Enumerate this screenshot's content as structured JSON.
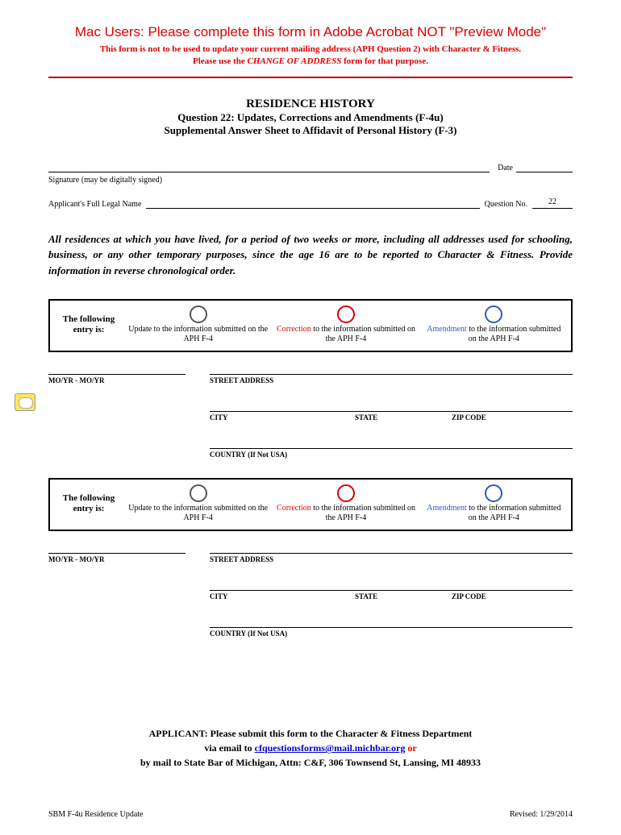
{
  "header": {
    "mac_warning": "Mac Users: Please complete this form in Adobe Acrobat NOT \"Preview Mode\"",
    "sub_warning_1": "This form is not to be used to update your current mailing address (APH Question 2) with Character & Fitness.",
    "sub_warning_2a": "Please use the ",
    "sub_warning_2b": "CHANGE OF ADDRESS",
    "sub_warning_2c": " form for that purpose."
  },
  "title": {
    "main": "RESIDENCE HISTORY",
    "line2": "Question 22: Updates, Corrections and Amendments (F-4u)",
    "line3": "Supplemental Answer Sheet to Affidavit of Personal History (F-3)"
  },
  "fields": {
    "signature_label": "Signature (may be digitally signed)",
    "date_label": "Date",
    "name_label": "Applicant's Full Legal Name",
    "question_label": "Question No.",
    "question_value": "22"
  },
  "instructions": "All residences at which you have lived, for a period of two weeks or more, including all addresses used for schooling, business, or any other temporary purposes, since the age 16 are to be reported to Character & Fitness.  Provide information in reverse chronological order.",
  "entry": {
    "label_1": "The following",
    "label_2": "entry is:",
    "update_word": "Update",
    "update_rest": " to the information submitted on the APH F-4",
    "correction_word": "Correction",
    "correction_rest": " to the information submitted on the APH F-4",
    "amendment_word": "Amendment",
    "amendment_rest": " to the information submitted on the APH F-4"
  },
  "addr": {
    "moyr": "MO/YR - MO/YR",
    "street": "STREET ADDRESS",
    "city": "CITY",
    "state": "STATE",
    "zip": "ZIP CODE",
    "country": "COUNTRY (If Not USA)"
  },
  "submit": {
    "line1": "APPLICANT: Please submit this form to the Character & Fitness Department",
    "line2a": "via email to ",
    "email": "cfquestionsforms@mail.michbar.org",
    "line2b": " or",
    "line3": "by mail to State Bar of Michigan, Attn: C&F, 306 Townsend St, Lansing, MI 48933"
  },
  "footer": {
    "left": "SBM F-4u Residence Update",
    "right": "Revised: 1/29/2014"
  },
  "colors": {
    "red": "#d00",
    "blue": "#35c",
    "link": "#00c"
  }
}
